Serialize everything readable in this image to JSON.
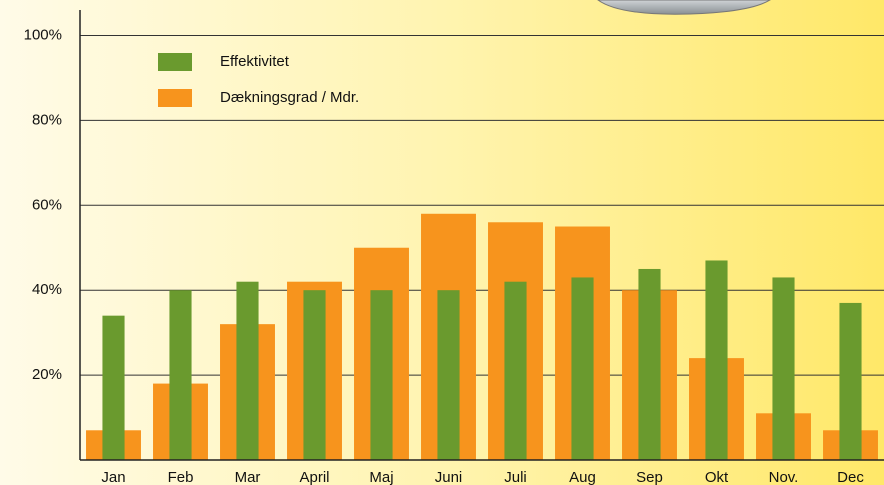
{
  "chart_data": {
    "type": "bar",
    "categories": [
      "Jan",
      "Feb",
      "Mar",
      "April",
      "Maj",
      "Juni",
      "Juli",
      "Aug",
      "Sep",
      "Okt",
      "Nov.",
      "Dec"
    ],
    "series": [
      {
        "name": "Effektivitet",
        "color": "#6a9a2e",
        "values": [
          34,
          40,
          42,
          40,
          40,
          40,
          42,
          43,
          45,
          47,
          43,
          37
        ]
      },
      {
        "name": "Dækningsgrad / Mdr.",
        "color": "#f7941d",
        "values": [
          7,
          18,
          32,
          42,
          50,
          58,
          56,
          55,
          40,
          24,
          11,
          7
        ]
      }
    ],
    "ylim": [
      0,
      106
    ],
    "yticks": [
      {
        "value": 20,
        "label": "20%"
      },
      {
        "value": 40,
        "label": "40%"
      },
      {
        "value": 60,
        "label": "60%"
      },
      {
        "value": 80,
        "label": "80%"
      },
      {
        "value": 100,
        "label": "100%"
      }
    ],
    "grid": true
  }
}
